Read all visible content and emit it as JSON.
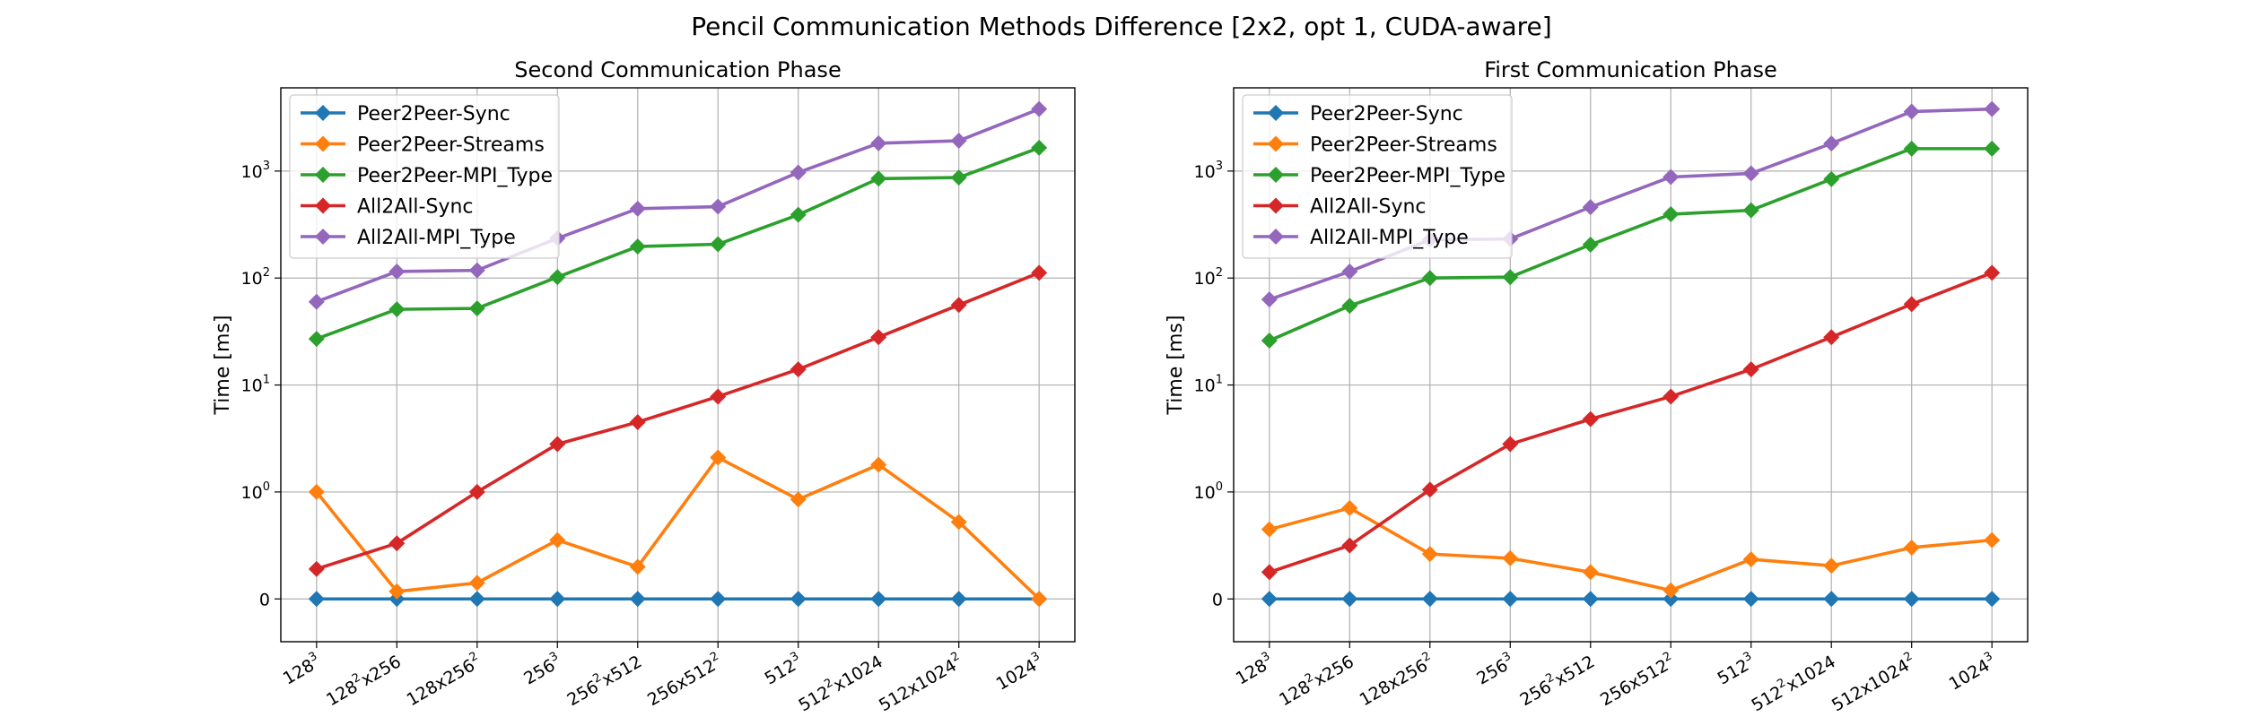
{
  "figure": {
    "title": "Pencil Communication Methods Difference [2x2, opt 1, CUDA-aware]"
  },
  "chart_data": [
    {
      "type": "line",
      "title": "Second Communication Phase",
      "xlabel": "",
      "ylabel": "Time [ms]",
      "yscale": "symlog",
      "grid": true,
      "legend": "upper-left",
      "categories": [
        {
          "base": "128",
          "parts": [
            [
              "128",
              "3"
            ]
          ]
        },
        {
          "base": "128²x256",
          "parts": [
            [
              "128",
              "2"
            ],
            [
              "x256",
              ""
            ]
          ]
        },
        {
          "base": "128x256²",
          "parts": [
            [
              "128x256",
              "2"
            ]
          ]
        },
        {
          "base": "256³",
          "parts": [
            [
              "256",
              "3"
            ]
          ]
        },
        {
          "base": "256²x512",
          "parts": [
            [
              "256",
              "2"
            ],
            [
              "x512",
              ""
            ]
          ]
        },
        {
          "base": "256x512²",
          "parts": [
            [
              "256x512",
              "2"
            ]
          ]
        },
        {
          "base": "512³",
          "parts": [
            [
              "512",
              "3"
            ]
          ]
        },
        {
          "base": "512²x1024",
          "parts": [
            [
              "512",
              "2"
            ],
            [
              "x1024",
              ""
            ]
          ]
        },
        {
          "base": "512x1024²",
          "parts": [
            [
              "512x1024",
              "2"
            ]
          ]
        },
        {
          "base": "1024³",
          "parts": [
            [
              "1024",
              "3"
            ]
          ]
        }
      ],
      "yticks": [
        {
          "value": 0,
          "label": "0",
          "sup": ""
        },
        {
          "value": 1,
          "label": "10",
          "sup": "0"
        },
        {
          "value": 10,
          "label": "10",
          "sup": "1"
        },
        {
          "value": 100,
          "label": "10",
          "sup": "2"
        },
        {
          "value": 1000,
          "label": "10",
          "sup": "3"
        }
      ],
      "ylim": [
        -0.4,
        6000
      ],
      "series": [
        {
          "name": "Peer2Peer-Sync",
          "color": "#1f77b4",
          "values": [
            0,
            0,
            0,
            0,
            0,
            0,
            0,
            0,
            0,
            0
          ]
        },
        {
          "name": "Peer2Peer-Streams",
          "color": "#ff7f0e",
          "values": [
            1.0,
            0.07,
            0.15,
            0.55,
            0.3,
            2.1,
            0.93,
            1.8,
            0.72,
            0
          ]
        },
        {
          "name": "Peer2Peer-MPI_Type",
          "color": "#2ca02c",
          "values": [
            27,
            51,
            52,
            102,
            197,
            207,
            390,
            850,
            870,
            1650
          ]
        },
        {
          "name": "All2All-Sync",
          "color": "#d62728",
          "values": [
            0.28,
            0.52,
            1.0,
            2.8,
            4.5,
            7.8,
            14,
            28,
            56,
            112
          ]
        },
        {
          "name": "All2All-MPI_Type",
          "color": "#9467bd",
          "values": [
            60,
            115,
            118,
            235,
            445,
            465,
            970,
            1820,
            1920,
            3800
          ]
        }
      ]
    },
    {
      "type": "line",
      "title": "First Communication Phase",
      "xlabel": "",
      "ylabel": "Time [ms]",
      "yscale": "symlog",
      "grid": true,
      "legend": "upper-left",
      "categories": [
        {
          "base": "128",
          "parts": [
            [
              "128",
              "3"
            ]
          ]
        },
        {
          "base": "128²x256",
          "parts": [
            [
              "128",
              "2"
            ],
            [
              "x256",
              ""
            ]
          ]
        },
        {
          "base": "128x256²",
          "parts": [
            [
              "128x256",
              "2"
            ]
          ]
        },
        {
          "base": "256³",
          "parts": [
            [
              "256",
              "3"
            ]
          ]
        },
        {
          "base": "256²x512",
          "parts": [
            [
              "256",
              "2"
            ],
            [
              "x512",
              ""
            ]
          ]
        },
        {
          "base": "256x512²",
          "parts": [
            [
              "256x512",
              "2"
            ]
          ]
        },
        {
          "base": "512³",
          "parts": [
            [
              "512",
              "3"
            ]
          ]
        },
        {
          "base": "512²x1024",
          "parts": [
            [
              "512",
              "2"
            ],
            [
              "x1024",
              ""
            ]
          ]
        },
        {
          "base": "512x1024²",
          "parts": [
            [
              "512x1024",
              "2"
            ]
          ]
        },
        {
          "base": "1024³",
          "parts": [
            [
              "1024",
              "3"
            ]
          ]
        }
      ],
      "yticks": [
        {
          "value": 0,
          "label": "0",
          "sup": ""
        },
        {
          "value": 1,
          "label": "10",
          "sup": "0"
        },
        {
          "value": 10,
          "label": "10",
          "sup": "1"
        },
        {
          "value": 100,
          "label": "10",
          "sup": "2"
        },
        {
          "value": 1000,
          "label": "10",
          "sup": "3"
        }
      ],
      "ylim": [
        -0.4,
        6000
      ],
      "series": [
        {
          "name": "Peer2Peer-Sync",
          "color": "#1f77b4",
          "values": [
            0,
            0,
            0,
            0,
            0,
            0,
            0,
            0,
            0,
            0
          ]
        },
        {
          "name": "Peer2Peer-Streams",
          "color": "#ff7f0e",
          "values": [
            0.65,
            0.85,
            0.42,
            0.38,
            0.25,
            0.08,
            0.37,
            0.31,
            0.48,
            0.55
          ]
        },
        {
          "name": "Peer2Peer-MPI_Type",
          "color": "#2ca02c",
          "values": [
            26,
            55,
            100,
            102,
            205,
            395,
            430,
            840,
            1620,
            1620
          ]
        },
        {
          "name": "All2All-Sync",
          "color": "#d62728",
          "values": [
            0.25,
            0.5,
            1.05,
            2.8,
            4.8,
            7.8,
            14,
            28,
            57,
            112
          ]
        },
        {
          "name": "All2All-MPI_Type",
          "color": "#9467bd",
          "values": [
            63,
            115,
            228,
            232,
            460,
            880,
            950,
            1810,
            3600,
            3800
          ]
        }
      ]
    }
  ]
}
